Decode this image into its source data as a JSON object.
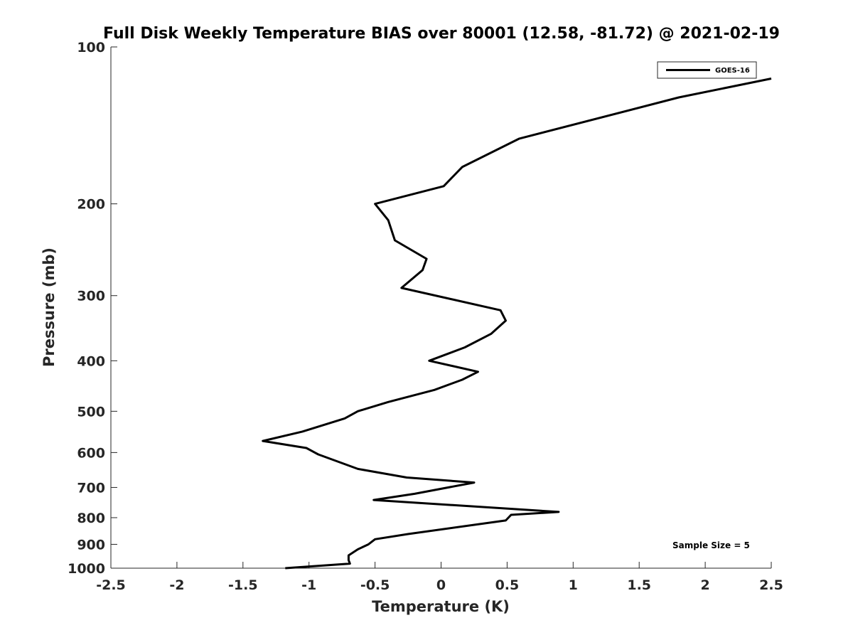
{
  "chart_data": {
    "type": "line",
    "title": "Full Disk Weekly Temperature BIAS over 80001 (12.58, -81.72) @ 2021-02-19",
    "xlabel": "Temperature (K)",
    "ylabel": "Pressure (mb)",
    "xlim": [
      -2.5,
      2.5
    ],
    "ylim": [
      1000,
      100
    ],
    "yscale": "log",
    "xticks": [
      -2.5,
      -2,
      -1.5,
      -1,
      -0.5,
      0,
      0.5,
      1,
      1.5,
      2,
      2.5
    ],
    "xtick_labels": [
      "-2.5",
      "-2",
      "-1.5",
      "-1",
      "-0.5",
      "0",
      "0.5",
      "1",
      "1.5",
      "2",
      "2.5"
    ],
    "yticks": [
      100,
      200,
      300,
      400,
      500,
      600,
      700,
      800,
      900,
      1000
    ],
    "ytick_labels": [
      "100",
      "200",
      "300",
      "400",
      "500",
      "600",
      "700",
      "800",
      "900",
      "1000"
    ],
    "grid": false,
    "legend_position": "top-right",
    "line_color": "#000000",
    "series": [
      {
        "name": "GOES-16",
        "x": [
          2.5,
          1.8,
          0.59,
          0.16,
          0.02,
          -0.5,
          -0.4,
          -0.35,
          -0.11,
          -0.14,
          -0.3,
          0.45,
          0.49,
          0.38,
          0.18,
          -0.09,
          0.28,
          0.16,
          -0.05,
          -0.4,
          -0.63,
          -0.73,
          -1.05,
          -1.35,
          -1.02,
          -0.93,
          -0.63,
          -0.26,
          0.25,
          -0.2,
          -0.51,
          0.89,
          0.53,
          0.49,
          -0.25,
          -0.5,
          -0.55,
          -0.63,
          -0.7,
          -0.7,
          -0.69,
          -1.18
        ],
        "y": [
          115,
          125,
          150,
          170,
          185,
          200,
          215,
          235,
          255,
          268,
          290,
          320,
          335,
          355,
          377,
          400,
          420,
          435,
          455,
          480,
          500,
          516,
          547,
          570,
          588,
          605,
          645,
          670,
          685,
          720,
          740,
          780,
          790,
          810,
          860,
          880,
          900,
          920,
          945,
          965,
          980,
          1000
        ]
      }
    ],
    "annotation": "Sample Size = 5"
  }
}
